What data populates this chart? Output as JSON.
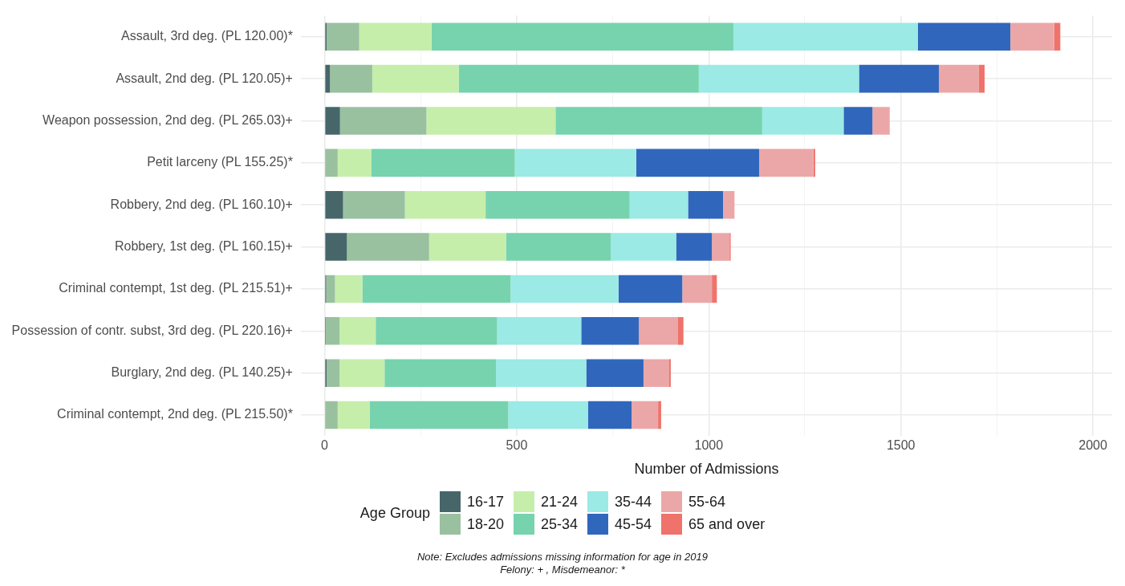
{
  "chart_data": {
    "type": "bar",
    "orientation": "horizontal",
    "stacked": true,
    "categories": [
      "Assault, 3rd deg. (PL 120.00)*",
      "Assault, 2nd deg. (PL 120.05)+",
      "Weapon possession, 2nd deg. (PL 265.03)+",
      "Petit larceny (PL 155.25)*",
      "Robbery, 2nd deg. (PL 160.10)+",
      "Robbery, 1st deg. (PL 160.15)+",
      "Criminal contempt, 1st deg. (PL 215.51)+",
      "Possession of contr. subst, 3rd deg. (PL 220.16)+",
      "Burglary, 2nd deg. (PL 140.25)+",
      "Criminal contempt, 2nd deg. (PL 215.50)*"
    ],
    "series": [
      {
        "name": "16-17",
        "color": "#46666a",
        "values": [
          5,
          14,
          40,
          2,
          48,
          58,
          4,
          3,
          5,
          2
        ]
      },
      {
        "name": "18-20",
        "color": "#99c19f",
        "values": [
          85,
          110,
          225,
          32,
          161,
          214,
          23,
          36,
          34,
          32
        ]
      },
      {
        "name": "21-24",
        "color": "#c6eeab",
        "values": [
          188,
          225,
          336,
          88,
          210,
          200,
          71,
          94,
          117,
          83
        ]
      },
      {
        "name": "25-34",
        "color": "#76d3ae",
        "values": [
          786,
          625,
          538,
          373,
          375,
          273,
          386,
          316,
          290,
          361
        ]
      },
      {
        "name": "35-44",
        "color": "#9beae5",
        "values": [
          480,
          417,
          212,
          316,
          152,
          170,
          281,
          219,
          235,
          208
        ]
      },
      {
        "name": "45-54",
        "color": "#3067bc",
        "values": [
          241,
          208,
          75,
          320,
          91,
          93,
          166,
          150,
          149,
          113
        ]
      },
      {
        "name": "55-64",
        "color": "#eba7a8",
        "values": [
          114,
          104,
          45,
          141,
          30,
          46,
          77,
          102,
          67,
          69
        ]
      },
      {
        "name": "65 and over",
        "color": "#ef736a",
        "values": [
          16,
          15,
          0,
          5,
          0,
          3,
          13,
          14,
          4,
          8
        ]
      }
    ],
    "xlim": [
      -62,
      2050
    ],
    "xticks": [
      0,
      {
        "value": 250,
        "label": null
      },
      500,
      {
        "value": 750,
        "label": null
      },
      1000,
      {
        "value": 1250,
        "label": null
      },
      1500,
      {
        "value": 1750,
        "label": null
      },
      2000
    ],
    "xlabel": "Number of Admissions",
    "legend_title": "Age Group",
    "legend": "bottom",
    "grid": true,
    "annotations": [
      "Note: Excludes admissions missing information for age in 2019",
      "Felony: + , Misdemeanor: *"
    ]
  }
}
